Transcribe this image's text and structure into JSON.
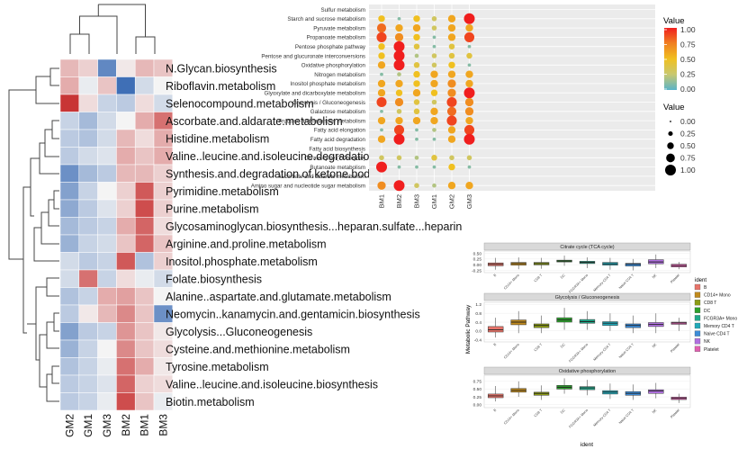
{
  "chart_data": [
    {
      "type": "heatmap",
      "columns": [
        "GM2",
        "GM1",
        "GM3",
        "BM2",
        "BM1",
        "BM3"
      ],
      "rows": [
        "N.Glycan.biosynthesis",
        "Riboflavin.metabolism",
        "Selenocompound.metabolism",
        "Ascorbate.and.aldarate.metabolism",
        "Histidine.metabolism",
        "Valine..leucine.and.isoleucine.degradation",
        "Synthesis.and.degradation.of.ketone.bodies",
        "Pyrimidine.metabolism",
        "Purine.metabolism",
        "Glycosaminoglycan.biosynthesis...heparan.sulfate...heparin",
        "Arginine.and.proline.metabolism",
        "Inositol.phosphate.metabolism",
        "Folate.biosynthesis",
        "Alanine..aspartate.and.glutamate.metabolism",
        "Neomycin..kanamycin.and.gentamicin.biosynthesis",
        "Glycolysis...Gluconeogenesis",
        "Cysteine.and.methionine.metabolism",
        "Tyrosine.metabolism",
        "Valine..leucine.and.isoleucine.biosynthesis",
        "Biotin.metabolism"
      ],
      "values": [
        [
          0.5,
          0.3,
          -1.3,
          0.1,
          0.5,
          0.4
        ],
        [
          0.6,
          -0.1,
          0.4,
          -1.6,
          -0.3,
          0.0
        ],
        [
          1.6,
          0.2,
          -0.4,
          -0.5,
          0.2,
          -0.3
        ],
        [
          -0.4,
          -0.7,
          -0.3,
          0.0,
          0.6,
          1.1
        ],
        [
          -0.5,
          -0.6,
          -0.3,
          0.5,
          0.2,
          0.6
        ],
        [
          -0.5,
          -0.3,
          -0.2,
          0.6,
          0.4,
          0.6
        ],
        [
          -1.2,
          -0.7,
          -0.5,
          0.5,
          0.5,
          0.3
        ],
        [
          -1.0,
          -0.4,
          0.0,
          0.3,
          1.3,
          0.3
        ],
        [
          -0.9,
          -0.5,
          -0.2,
          0.3,
          1.4,
          0.3
        ],
        [
          -0.7,
          -0.5,
          -0.4,
          0.6,
          1.2,
          0.2
        ],
        [
          -0.8,
          -0.4,
          -0.3,
          0.4,
          1.2,
          0.4
        ],
        [
          -0.3,
          -0.5,
          -0.4,
          1.3,
          -0.6,
          0.3
        ],
        [
          -0.3,
          1.1,
          -0.4,
          0.2,
          -0.1,
          -0.3
        ],
        [
          -0.6,
          -0.4,
          0.6,
          0.7,
          0.4,
          0.0
        ],
        [
          -0.5,
          0.1,
          0.5,
          0.9,
          0.4,
          -1.2
        ],
        [
          -1.0,
          -0.5,
          -0.4,
          0.8,
          0.4,
          0.1
        ],
        [
          -0.8,
          -0.4,
          0.0,
          0.9,
          0.4,
          0.2
        ],
        [
          -0.6,
          -0.4,
          -0.1,
          1.1,
          0.6,
          0.1
        ],
        [
          -0.5,
          -0.4,
          -0.2,
          1.2,
          0.3,
          0.2
        ],
        [
          -0.5,
          -0.4,
          -0.1,
          1.4,
          0.4,
          -0.1
        ]
      ],
      "color_low": "#3f6fb6",
      "color_mid": "#f4f4f4",
      "color_high": "#c83535",
      "grid": false
    },
    {
      "type": "scatter",
      "x_categories": [
        "BM1",
        "BM2",
        "BM3",
        "GM1",
        "GM2",
        "GM3"
      ],
      "y_categories": [
        "Sulfur metabolism",
        "Starch and sucrose metabolism",
        "Pyruvate metabolism",
        "Propanoate metabolism",
        "Pentose phosphate pathway",
        "Pentose and glucuronate interconversions",
        "Oxidative phosphorylation",
        "Nitrogen metabolism",
        "Inositol phosphate metabolism",
        "Glyoxylate and dicarboxylate metabolism",
        "Glycolysis / Gluconeogenesis",
        "Galactose metabolism",
        "Fructose and mannose metabolism",
        "Fatty acid elongation",
        "Fatty acid degradation",
        "Fatty acid biosynthesis",
        "Citrate cycle (TCA cycle)",
        "Butanoate metabolism",
        "Ascorbate and aldarate metabolism",
        "Amino sugar and nucleotide sugar metabolism"
      ],
      "values": [
        [
          0,
          0,
          0,
          0,
          0,
          0
        ],
        [
          0.5,
          0.1,
          0.5,
          0.3,
          0.6,
          1.0
        ],
        [
          0.8,
          0.6,
          0.6,
          0.3,
          0.6,
          0.6
        ],
        [
          0.9,
          0.7,
          0.5,
          0.1,
          0.6,
          0.9
        ],
        [
          0.5,
          1.0,
          0.4,
          0.1,
          0.4,
          0.1
        ],
        [
          0.5,
          1.0,
          0.2,
          0.3,
          0.4,
          0.4
        ],
        [
          0.6,
          1.0,
          0.4,
          0.3,
          0.5,
          0.1
        ],
        [
          0.1,
          0.2,
          0.5,
          0.6,
          0.6,
          0.6
        ],
        [
          0.6,
          0.6,
          0.5,
          0.6,
          0.7,
          0.6
        ],
        [
          0.6,
          0.5,
          0.6,
          0.5,
          0.7,
          1.0
        ],
        [
          0.9,
          0.7,
          0.4,
          0.3,
          0.9,
          0.7
        ],
        [
          0.1,
          0.3,
          0.4,
          0.6,
          0.8,
          0.7
        ],
        [
          0.6,
          0.6,
          0.6,
          0.6,
          0.9,
          0.6
        ],
        [
          0.1,
          0.9,
          0.1,
          0.2,
          0.6,
          0.9
        ],
        [
          0.6,
          1.0,
          0.1,
          0.1,
          0.6,
          1.0
        ],
        [
          0,
          0,
          0,
          0,
          0,
          0
        ],
        [
          0.3,
          0.3,
          0.2,
          0.4,
          0.3,
          0.3
        ],
        [
          1.0,
          0.1,
          0.1,
          0.1,
          0.5,
          0.1
        ],
        [
          0,
          0,
          0,
          0,
          0,
          0
        ],
        [
          0.7,
          1.0,
          0.3,
          0.2,
          0.6,
          0.6
        ]
      ],
      "color_legend": {
        "title": "Value",
        "ticks": [
          "1.00",
          "0.75",
          "0.50",
          "0.25",
          "0.00"
        ]
      },
      "size_legend": {
        "title": "Value",
        "ticks": [
          "0.00",
          "0.25",
          "0.50",
          "0.75",
          "1.00"
        ],
        "values": [
          0,
          0.25,
          0.5,
          0.75,
          1.0
        ]
      },
      "colors": [
        "#5ab4c8",
        "#c8c870",
        "#f0c020",
        "#f08020",
        "#f01e1e"
      ],
      "grid": true
    },
    {
      "type": "box",
      "ylabel": "Metabolic Pathway",
      "xlabel": "ident",
      "categories": [
        "B",
        "CD14+ Mono",
        "CD8 T",
        "DC",
        "FCGR3A+ Mono",
        "Memory CD4 T",
        "Naive CD4 T",
        "NK",
        "Platelet"
      ],
      "legend": {
        "title": "ident",
        "entries": [
          "B",
          "CD14+ Mono",
          "CD8 T",
          "DC",
          "FCGR3A+ Mono",
          "Memory CD4 T",
          "Naive CD4 T",
          "NK",
          "Platelet"
        ],
        "colors": [
          "#e8746a",
          "#c08a1c",
          "#8c9c14",
          "#2ca02c",
          "#20a88a",
          "#20a8b8",
          "#3c8cd8",
          "#b070e0",
          "#e060b0"
        ]
      },
      "panels": [
        {
          "title": "Citrate cycle (TCA cycle)",
          "yticks": [
            "0.50",
            "0.25",
            "0.00",
            "-0.25"
          ],
          "ylim": [
            -0.35,
            0.6
          ],
          "boxes": [
            [
              -0.22,
              -0.05,
              0.02,
              0.08,
              0.3
            ],
            [
              -0.2,
              -0.02,
              0.05,
              0.1,
              0.32
            ],
            [
              -0.18,
              -0.01,
              0.05,
              0.1,
              0.3
            ],
            [
              -0.05,
              0.12,
              0.16,
              0.2,
              0.4
            ],
            [
              -0.15,
              0.05,
              0.1,
              0.15,
              0.32
            ],
            [
              -0.22,
              -0.02,
              0.04,
              0.1,
              0.3
            ],
            [
              -0.25,
              -0.06,
              0.02,
              0.06,
              0.25
            ],
            [
              -0.15,
              0.04,
              0.12,
              0.22,
              0.45
            ],
            [
              -0.2,
              -0.1,
              -0.04,
              0.02,
              0.12
            ]
          ]
        },
        {
          "title": "Glycolysis / Gluconeogenesis",
          "yticks": [
            "1.2",
            "0.8",
            "0.4",
            "0.0",
            "-0.4"
          ],
          "ylim": [
            -0.5,
            1.3
          ],
          "boxes": [
            [
              -0.3,
              -0.05,
              0.05,
              0.2,
              0.6
            ],
            [
              -0.1,
              0.28,
              0.4,
              0.5,
              0.9
            ],
            [
              -0.1,
              0.15,
              0.25,
              0.32,
              0.7
            ],
            [
              0.05,
              0.4,
              0.5,
              0.6,
              1.05
            ],
            [
              0.05,
              0.35,
              0.42,
              0.52,
              0.9
            ],
            [
              0.0,
              0.25,
              0.35,
              0.42,
              0.8
            ],
            [
              -0.1,
              0.15,
              0.25,
              0.32,
              0.7
            ],
            [
              -0.1,
              0.2,
              0.3,
              0.38,
              0.8
            ],
            [
              0.0,
              0.3,
              0.36,
              0.4,
              0.6
            ]
          ]
        },
        {
          "title": "Oxidative phosphorylation",
          "yticks": [
            "0.75",
            "0.50",
            "0.25",
            "0.00"
          ],
          "ylim": [
            -0.1,
            0.95
          ],
          "boxes": [
            [
              0.1,
              0.22,
              0.28,
              0.34,
              0.6
            ],
            [
              0.25,
              0.4,
              0.46,
              0.52,
              0.75
            ],
            [
              0.15,
              0.3,
              0.36,
              0.4,
              0.62
            ],
            [
              0.35,
              0.5,
              0.56,
              0.62,
              0.85
            ],
            [
              0.3,
              0.48,
              0.54,
              0.58,
              0.8
            ],
            [
              0.18,
              0.34,
              0.4,
              0.45,
              0.68
            ],
            [
              0.15,
              0.3,
              0.36,
              0.42,
              0.65
            ],
            [
              0.2,
              0.36,
              0.44,
              0.48,
              0.7
            ],
            [
              0.05,
              0.16,
              0.2,
              0.24,
              0.35
            ]
          ]
        }
      ]
    }
  ]
}
